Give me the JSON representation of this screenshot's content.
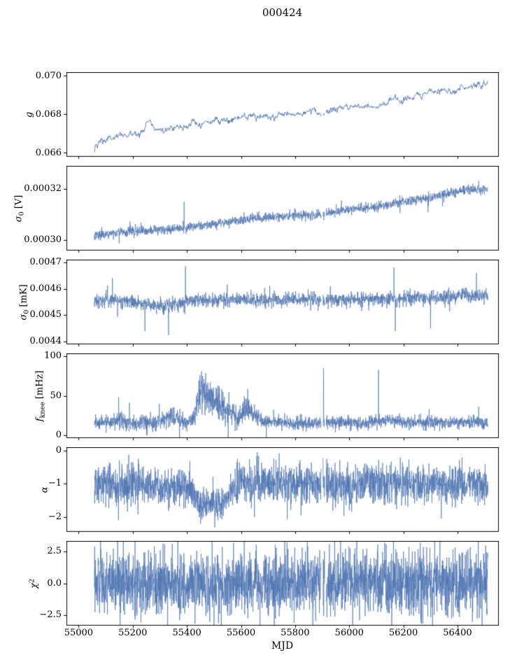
{
  "title": "000424",
  "figure": {
    "background": "#ffffff",
    "line_color": "#4c72b0",
    "axis_color": "#000000",
    "text_color": "#000000"
  },
  "x_axis": {
    "label": "MJD",
    "lim": [
      54955,
      56550
    ],
    "ticks": [
      55000,
      55200,
      55400,
      55600,
      55800,
      56000,
      56200,
      56400
    ],
    "tick_labels": [
      "55000",
      "55200",
      "55400",
      "55600",
      "55800",
      "56000",
      "56200",
      "56400"
    ]
  },
  "chart_data": [
    {
      "id": "g",
      "type": "line",
      "ylabel": "g",
      "ylabel_segments": [
        [
          "g",
          "i"
        ]
      ],
      "ylim": [
        0.0658,
        0.0702
      ],
      "yticks": [
        0.066,
        0.068,
        0.07
      ],
      "ytick_labels": [
        "0.066",
        "0.068",
        "0.070"
      ],
      "x_range": [
        55058,
        56512
      ],
      "n_points": 900,
      "line_width": 0.9,
      "smooth": 0.55,
      "tail_prob": 0,
      "tail_mult": 1,
      "trend": [
        [
          55058,
          0.0661
        ],
        [
          55070,
          0.0664
        ],
        [
          55085,
          0.0667
        ],
        [
          55100,
          0.0666
        ],
        [
          55120,
          0.0668
        ],
        [
          55140,
          0.0667
        ],
        [
          55160,
          0.067
        ],
        [
          55185,
          0.0669
        ],
        [
          55210,
          0.067
        ],
        [
          55240,
          0.0672
        ],
        [
          55258,
          0.0677
        ],
        [
          55275,
          0.0674
        ],
        [
          55290,
          0.0672
        ],
        [
          55310,
          0.0673
        ],
        [
          55330,
          0.0672
        ],
        [
          55360,
          0.0674
        ],
        [
          55390,
          0.0673
        ],
        [
          55420,
          0.0676
        ],
        [
          55450,
          0.0675
        ],
        [
          55480,
          0.0676
        ],
        [
          55510,
          0.0677
        ],
        [
          55540,
          0.0677
        ],
        [
          55570,
          0.0678
        ],
        [
          55600,
          0.0678
        ],
        [
          55640,
          0.0679
        ],
        [
          55680,
          0.0678
        ],
        [
          55720,
          0.0679
        ],
        [
          55760,
          0.068
        ],
        [
          55800,
          0.068
        ],
        [
          55840,
          0.0681
        ],
        [
          55870,
          0.0682
        ],
        [
          55895,
          0.0679
        ],
        [
          55915,
          0.0681
        ],
        [
          55950,
          0.0683
        ],
        [
          55990,
          0.0684
        ],
        [
          56030,
          0.0684
        ],
        [
          56070,
          0.0685
        ],
        [
          56100,
          0.0684
        ],
        [
          56140,
          0.0686
        ],
        [
          56165,
          0.0689
        ],
        [
          56185,
          0.0687
        ],
        [
          56215,
          0.0688
        ],
        [
          56250,
          0.069
        ],
        [
          56285,
          0.0691
        ],
        [
          56320,
          0.0692
        ],
        [
          56355,
          0.0693
        ],
        [
          56385,
          0.0692
        ],
        [
          56420,
          0.0694
        ],
        [
          56455,
          0.0695
        ],
        [
          56490,
          0.0695
        ],
        [
          56512,
          0.0696
        ]
      ],
      "noise_amp": [
        [
          55058,
          0.00011
        ],
        [
          55150,
          8e-05
        ],
        [
          55400,
          7e-05
        ],
        [
          56512,
          7e-05
        ]
      ],
      "spikes": [],
      "gaps": [
        [
          55896,
          55903
        ],
        [
          55909,
          55914
        ]
      ]
    },
    {
      "id": "sigma0-V",
      "type": "line",
      "ylabel": "sigma0 [V]",
      "ylabel_segments": [
        [
          "σ",
          "i"
        ],
        [
          "0",
          "sub"
        ],
        [
          " [V]",
          "n"
        ]
      ],
      "ylim": [
        0.000296,
        0.000329
      ],
      "yticks": [
        0.0003,
        0.00032
      ],
      "ytick_labels": [
        "0.00030",
        "0.00032"
      ],
      "x_range": [
        55058,
        56512
      ],
      "n_points": 2000,
      "line_width": 0.7,
      "smooth": 0,
      "tail_prob": 0.03,
      "tail_mult": 2.6,
      "trend": [
        [
          55058,
          0.000302
        ],
        [
          55200,
          0.0003035
        ],
        [
          55300,
          0.000304
        ],
        [
          55400,
          0.000305
        ],
        [
          55500,
          0.0003065
        ],
        [
          55600,
          0.000308
        ],
        [
          55700,
          0.000309
        ],
        [
          55800,
          0.0003095
        ],
        [
          55900,
          0.00031
        ],
        [
          56000,
          0.000312
        ],
        [
          56100,
          0.000313
        ],
        [
          56200,
          0.000315
        ],
        [
          56300,
          0.0003165
        ],
        [
          56350,
          0.000318
        ],
        [
          56400,
          0.000319
        ],
        [
          56450,
          0.0003195
        ],
        [
          56512,
          0.00032
        ]
      ],
      "noise_amp": [
        [
          55058,
          9e-07
        ],
        [
          56512,
          9e-07
        ]
      ],
      "spikes": [
        [
          55390,
          0.000315
        ],
        [
          55952,
          0.000314
        ],
        [
          56108,
          0.0003135
        ]
      ],
      "gaps": [
        [
          55896,
          55903
        ],
        [
          55909,
          55914
        ]
      ]
    },
    {
      "id": "sigma0-mK",
      "type": "line",
      "ylabel": "sigma0 [mK]",
      "ylabel_segments": [
        [
          "σ",
          "i"
        ],
        [
          "0",
          "sub"
        ],
        [
          " [mK]",
          "n"
        ]
      ],
      "ylim": [
        0.00439,
        0.00471
      ],
      "yticks": [
        0.0044,
        0.0045,
        0.0046,
        0.0047
      ],
      "ytick_labels": [
        "0.0044",
        "0.0045",
        "0.0046",
        "0.0047"
      ],
      "x_range": [
        55058,
        56512
      ],
      "n_points": 2000,
      "line_width": 0.7,
      "smooth": 0,
      "tail_prob": 0.04,
      "tail_mult": 1.9,
      "trend": [
        [
          55058,
          0.004555
        ],
        [
          55150,
          0.004555
        ],
        [
          55250,
          0.004545
        ],
        [
          55320,
          0.004535
        ],
        [
          55360,
          0.004545
        ],
        [
          55420,
          0.004555
        ],
        [
          55500,
          0.004555
        ],
        [
          55600,
          0.00456
        ],
        [
          55700,
          0.004555
        ],
        [
          55800,
          0.00456
        ],
        [
          55900,
          0.004558
        ],
        [
          56000,
          0.00456
        ],
        [
          56100,
          0.004562
        ],
        [
          56200,
          0.004562
        ],
        [
          56300,
          0.004564
        ],
        [
          56400,
          0.004573
        ],
        [
          56470,
          0.004575
        ],
        [
          56512,
          0.004575
        ]
      ],
      "noise_amp": [
        [
          55058,
          1.3e-05
        ],
        [
          56512,
          1.3e-05
        ]
      ],
      "spikes": [
        [
          55125,
          0.00464
        ],
        [
          55245,
          0.00444
        ],
        [
          55332,
          0.004425
        ],
        [
          55395,
          0.004685
        ],
        [
          56165,
          0.00468
        ],
        [
          56170,
          0.00444
        ],
        [
          56300,
          0.00445
        ],
        [
          56470,
          0.00466
        ]
      ],
      "gaps": [
        [
          55896,
          55903
        ],
        [
          55909,
          55914
        ]
      ]
    },
    {
      "id": "fknee",
      "type": "line",
      "ylabel": "f_knee [mHz]",
      "ylabel_segments": [
        [
          "f",
          "i"
        ],
        [
          "knee",
          "sub"
        ],
        [
          " [mHz]",
          "n"
        ]
      ],
      "ylim": [
        -4,
        104
      ],
      "yticks": [
        0,
        50,
        100
      ],
      "ytick_labels": [
        "0",
        "50",
        "100"
      ],
      "x_range": [
        55058,
        56512
      ],
      "n_points": 2200,
      "line_width": 0.7,
      "smooth": 0,
      "tail_prob": 0.05,
      "tail_mult": 2.0,
      "trend": [
        [
          55058,
          16
        ],
        [
          55120,
          16
        ],
        [
          55150,
          18
        ],
        [
          55200,
          15
        ],
        [
          55280,
          15
        ],
        [
          55320,
          20
        ],
        [
          55345,
          24
        ],
        [
          55370,
          18
        ],
        [
          55400,
          17
        ],
        [
          55425,
          25
        ],
        [
          55445,
          45
        ],
        [
          55465,
          55
        ],
        [
          55485,
          52
        ],
        [
          55505,
          45
        ],
        [
          55525,
          38
        ],
        [
          55545,
          30
        ],
        [
          55565,
          24
        ],
        [
          55585,
          20
        ],
        [
          55605,
          26
        ],
        [
          55625,
          33
        ],
        [
          55645,
          26
        ],
        [
          55665,
          20
        ],
        [
          55690,
          17
        ],
        [
          55750,
          15
        ],
        [
          55850,
          15
        ],
        [
          55950,
          16
        ],
        [
          56050,
          15
        ],
        [
          56120,
          18
        ],
        [
          56150,
          20
        ],
        [
          56180,
          17
        ],
        [
          56250,
          15
        ],
        [
          56300,
          16
        ],
        [
          56400,
          15
        ],
        [
          56460,
          17
        ],
        [
          56512,
          15
        ]
      ],
      "noise_amp": [
        [
          55058,
          4
        ],
        [
          55420,
          6
        ],
        [
          55450,
          13
        ],
        [
          55500,
          12
        ],
        [
          55560,
          7
        ],
        [
          55620,
          8
        ],
        [
          55660,
          5
        ],
        [
          55700,
          4
        ],
        [
          56512,
          4
        ]
      ],
      "spikes": [
        [
          55148,
          48
        ],
        [
          55905,
          85
        ],
        [
          56108,
          83
        ],
        [
          56295,
          33
        ],
        [
          56478,
          36
        ]
      ],
      "gaps": [
        [
          55896,
          55903
        ],
        [
          55909,
          55914
        ]
      ]
    },
    {
      "id": "alpha",
      "type": "line",
      "ylabel": "alpha",
      "ylabel_segments": [
        [
          "α",
          "i"
        ]
      ],
      "ylim": [
        -2.45,
        0.1
      ],
      "yticks": [
        0,
        -1,
        -2
      ],
      "ytick_labels": [
        "0",
        "−1",
        "−2"
      ],
      "x_range": [
        55058,
        56512
      ],
      "n_points": 2200,
      "line_width": 0.7,
      "smooth": 0,
      "tail_prob": 0.02,
      "tail_mult": 1.6,
      "trend": [
        [
          55058,
          -1.0
        ],
        [
          55250,
          -1.0
        ],
        [
          55300,
          -1.1
        ],
        [
          55330,
          -1.15
        ],
        [
          55360,
          -1.1
        ],
        [
          55390,
          -1.05
        ],
        [
          55420,
          -1.2
        ],
        [
          55440,
          -1.45
        ],
        [
          55460,
          -1.6
        ],
        [
          55480,
          -1.65
        ],
        [
          55500,
          -1.62
        ],
        [
          55520,
          -1.6
        ],
        [
          55540,
          -1.5
        ],
        [
          55560,
          -1.35
        ],
        [
          55575,
          -1.15
        ],
        [
          55590,
          -1.0
        ],
        [
          55620,
          -0.95
        ],
        [
          55650,
          -1.0
        ],
        [
          56512,
          -1.0
        ]
      ],
      "noise_amp": [
        [
          55058,
          0.3
        ],
        [
          55420,
          0.28
        ],
        [
          55460,
          0.22
        ],
        [
          55540,
          0.22
        ],
        [
          55580,
          0.3
        ],
        [
          56512,
          0.3
        ]
      ],
      "spikes": [
        [
          55650,
          -2.0
        ],
        [
          56340,
          -2.05
        ]
      ],
      "gaps": [
        [
          55896,
          55903
        ],
        [
          55909,
          55914
        ]
      ]
    },
    {
      "id": "chi2",
      "type": "line",
      "ylabel": "chi^2",
      "ylabel_segments": [
        [
          "χ",
          "i"
        ],
        [
          "2",
          "sup"
        ]
      ],
      "ylim": [
        -3.35,
        3.35
      ],
      "yticks": [
        2.5,
        0.0,
        -2.5
      ],
      "ytick_labels": [
        "2.5",
        "0.0",
        "−2.5"
      ],
      "x_range": [
        55058,
        56512
      ],
      "n_points": 2400,
      "line_width": 0.7,
      "smooth": 0,
      "tail_prob": 0.02,
      "tail_mult": 1.4,
      "trend": [
        [
          55058,
          0
        ],
        [
          56512,
          0
        ]
      ],
      "noise_amp": [
        [
          55058,
          1.25
        ],
        [
          56512,
          1.25
        ]
      ],
      "spikes": [
        [
          55230,
          -3.1
        ],
        [
          55312,
          3.15
        ],
        [
          55612,
          3.3
        ],
        [
          56262,
          3.2
        ],
        [
          56455,
          -3.05
        ]
      ],
      "gaps": [
        [
          55896,
          55903
        ],
        [
          55909,
          55914
        ]
      ]
    }
  ]
}
